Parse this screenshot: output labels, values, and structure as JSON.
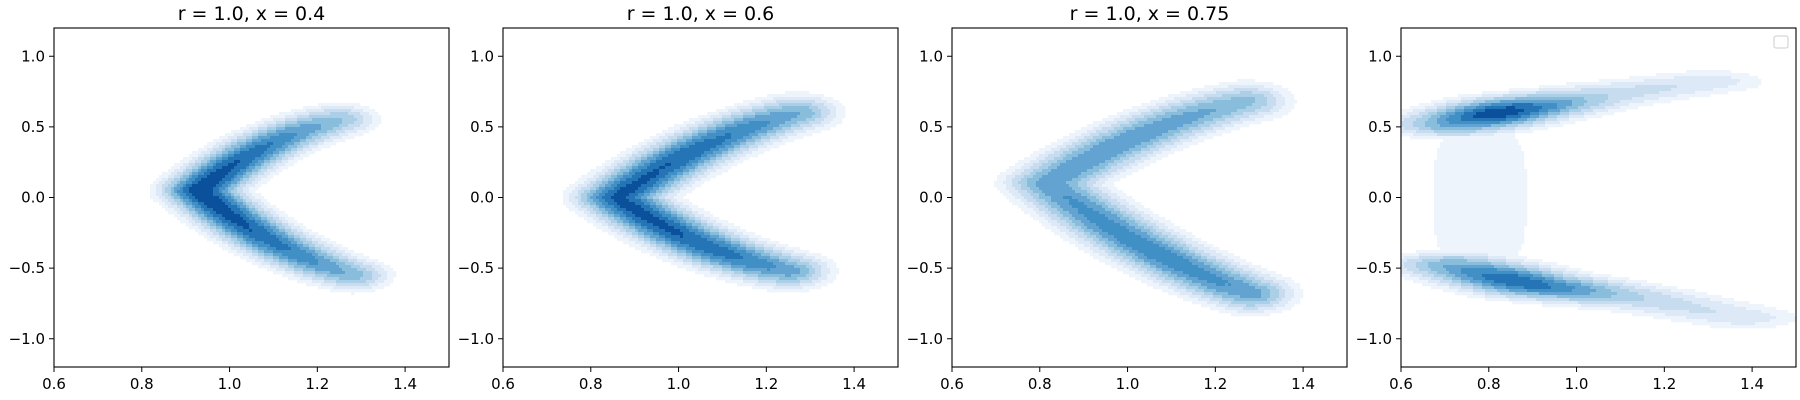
{
  "chart_data": [
    {
      "type": "kde-contour",
      "title": "r = 1.0, x = 0.4",
      "xlim": [
        0.6,
        1.5
      ],
      "ylim": [
        -1.2,
        1.2
      ],
      "xticks": [
        0.6,
        0.8,
        1.0,
        1.2,
        1.4
      ],
      "xtick_labels": [
        "0.6",
        "0.8",
        "1.0",
        "1.2",
        "1.4"
      ],
      "yticks": [
        1.0,
        0.5,
        0.0,
        -0.5,
        -1.0
      ],
      "ytick_labels": [
        "1.0",
        "0.5",
        "0.0",
        "−0.5",
        "−1.0"
      ],
      "colormap": "Blues",
      "legend": false,
      "shape": {
        "vertex": [
          0.93,
          0.05
        ],
        "upper_tip": [
          1.25,
          0.55
        ],
        "lower_tip": [
          1.28,
          -0.55
        ],
        "thickness": 0.085,
        "mode_weight": [
          0.65,
          1.0,
          0.75
        ]
      }
    },
    {
      "type": "kde-contour",
      "title": "r = 1.0, x = 0.6",
      "xlim": [
        0.6,
        1.5
      ],
      "ylim": [
        -1.2,
        1.2
      ],
      "xticks": [
        0.6,
        0.8,
        1.0,
        1.2,
        1.4
      ],
      "xtick_labels": [
        "0.6",
        "0.8",
        "1.0",
        "1.2",
        "1.4"
      ],
      "yticks": [
        1.0,
        0.5,
        0.0,
        -0.5,
        -1.0
      ],
      "ytick_labels": [
        "1.0",
        "0.5",
        "0.0",
        "−0.5",
        "−1.0"
      ],
      "colormap": "Blues",
      "legend": false,
      "shape": {
        "vertex": [
          0.86,
          0.0
        ],
        "upper_tip": [
          1.27,
          0.6
        ],
        "lower_tip": [
          1.25,
          -0.52
        ],
        "thickness": 0.095,
        "mode_weight": [
          0.85,
          0.9,
          0.95
        ]
      }
    },
    {
      "type": "kde-contour",
      "title": "r = 1.0, x = 0.75",
      "xlim": [
        0.6,
        1.5
      ],
      "ylim": [
        -1.2,
        1.2
      ],
      "xticks": [
        0.6,
        0.8,
        1.0,
        1.2,
        1.4
      ],
      "xtick_labels": [
        "0.6",
        "0.8",
        "1.0",
        "1.2",
        "1.4"
      ],
      "yticks": [
        1.0,
        0.5,
        0.0,
        -0.5,
        -1.0
      ],
      "ytick_labels": [
        "1.0",
        "0.5",
        "0.0",
        "−0.5",
        "−1.0"
      ],
      "colormap": "Blues",
      "legend": false,
      "shape": {
        "vertex": [
          0.82,
          0.1
        ],
        "upper_tip": [
          1.27,
          0.68
        ],
        "lower_tip": [
          1.28,
          -0.68
        ],
        "thickness": 0.1,
        "mode_weight": [
          0.7,
          0.55,
          0.95
        ]
      }
    },
    {
      "type": "kde-contour",
      "title": "",
      "xlim": [
        0.6,
        1.5
      ],
      "ylim": [
        -1.2,
        1.2
      ],
      "xticks": [
        0.6,
        0.8,
        1.0,
        1.2,
        1.4
      ],
      "xtick_labels": [
        "0.6",
        "0.8",
        "1.0",
        "1.2",
        "1.4"
      ],
      "yticks": [
        1.0,
        0.5,
        0.0,
        -0.5,
        -1.0
      ],
      "ytick_labels": [
        "1.0",
        "0.5",
        "0.0",
        "−0.5",
        "−1.0"
      ],
      "colormap": "Blues",
      "legend": true,
      "legend_position": "top-right",
      "shape": {
        "upper_band": [
          [
            0.72,
            0.52
          ],
          [
            0.85,
            0.62
          ],
          [
            1.05,
            0.72
          ],
          [
            1.3,
            0.82
          ]
        ],
        "lower_band": [
          [
            0.72,
            -0.48
          ],
          [
            0.9,
            -0.62
          ],
          [
            1.15,
            -0.72
          ],
          [
            1.38,
            -0.85
          ]
        ],
        "thickness": 0.08,
        "mode_weight": [
          1.0,
          0.8
        ]
      }
    }
  ]
}
